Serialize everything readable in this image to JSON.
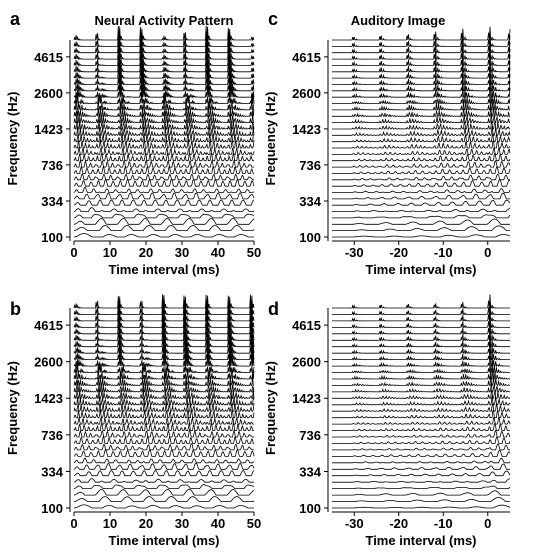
{
  "chart_data": [
    {
      "panel": "a",
      "type": "line",
      "title": "Neural Activity Pattern",
      "xlabel": "Time interval (ms)",
      "ylabel": "Frequency (Hz)",
      "xlim": [
        0,
        50
      ],
      "xticks": [
        0,
        10,
        20,
        30,
        40,
        50
      ],
      "yticks": [
        100,
        334,
        736,
        1423,
        2600,
        4615
      ],
      "channels": 32,
      "cf_range_hz": [
        100,
        6000
      ],
      "y_scale": "ERB-rate",
      "pulse_times_ms": [
        0,
        6.1,
        12.2,
        18.3,
        24.4,
        30.5,
        36.6,
        42.7,
        48.8
      ],
      "pulse_strength": [
        1,
        1,
        1,
        1,
        1,
        1,
        1,
        1,
        1
      ],
      "grid": false
    },
    {
      "panel": "b",
      "type": "line",
      "title": "",
      "xlabel": "Time interval (ms)",
      "ylabel": "Frequency (Hz)",
      "xlim": [
        0,
        50
      ],
      "xticks": [
        0,
        10,
        20,
        30,
        40,
        50
      ],
      "yticks": [
        100,
        334,
        736,
        1423,
        2600,
        4615
      ],
      "channels": 32,
      "cf_range_hz": [
        100,
        6000
      ],
      "y_scale": "ERB-rate",
      "pulse_times_ms": [
        0,
        6.1,
        12.2,
        18.4,
        24.5,
        30.4,
        36.6,
        42.7,
        48.9
      ],
      "pulse_strength": [
        0.9,
        1,
        0.85,
        1,
        0.95,
        1,
        0.9,
        1,
        0.9
      ],
      "grid": false
    },
    {
      "panel": "c",
      "type": "line",
      "title": "Auditory Image",
      "xlabel": "Time interval (ms)",
      "ylabel": "Frequency (Hz)",
      "xlim": [
        -35,
        5
      ],
      "xticks": [
        -30,
        -20,
        -10,
        0
      ],
      "yticks": [
        100,
        334,
        736,
        1423,
        2600,
        4615
      ],
      "channels": 32,
      "cf_range_hz": [
        100,
        6000
      ],
      "y_scale": "ERB-rate",
      "pulse_times_ms": [
        -30.5,
        -24.4,
        -18.3,
        -12.2,
        -6.1,
        0,
        4.5
      ],
      "pulse_strength": [
        0.25,
        0.35,
        0.45,
        0.65,
        0.85,
        1,
        0.8
      ],
      "grid": false
    },
    {
      "panel": "d",
      "type": "line",
      "title": "",
      "xlabel": "Time interval (ms)",
      "ylabel": "Frequency (Hz)",
      "xlim": [
        -35,
        5
      ],
      "xticks": [
        -30,
        -20,
        -10,
        0
      ],
      "yticks": [
        100,
        334,
        736,
        1423,
        2600,
        4615
      ],
      "channels": 32,
      "cf_range_hz": [
        100,
        6000
      ],
      "y_scale": "ERB-rate",
      "pulse_times_ms": [
        -30.5,
        -24.4,
        -18.3,
        -12.2,
        -6.1,
        0
      ],
      "pulse_strength": [
        0.2,
        0.25,
        0.3,
        0.35,
        0.45,
        1
      ],
      "grid": false
    }
  ]
}
